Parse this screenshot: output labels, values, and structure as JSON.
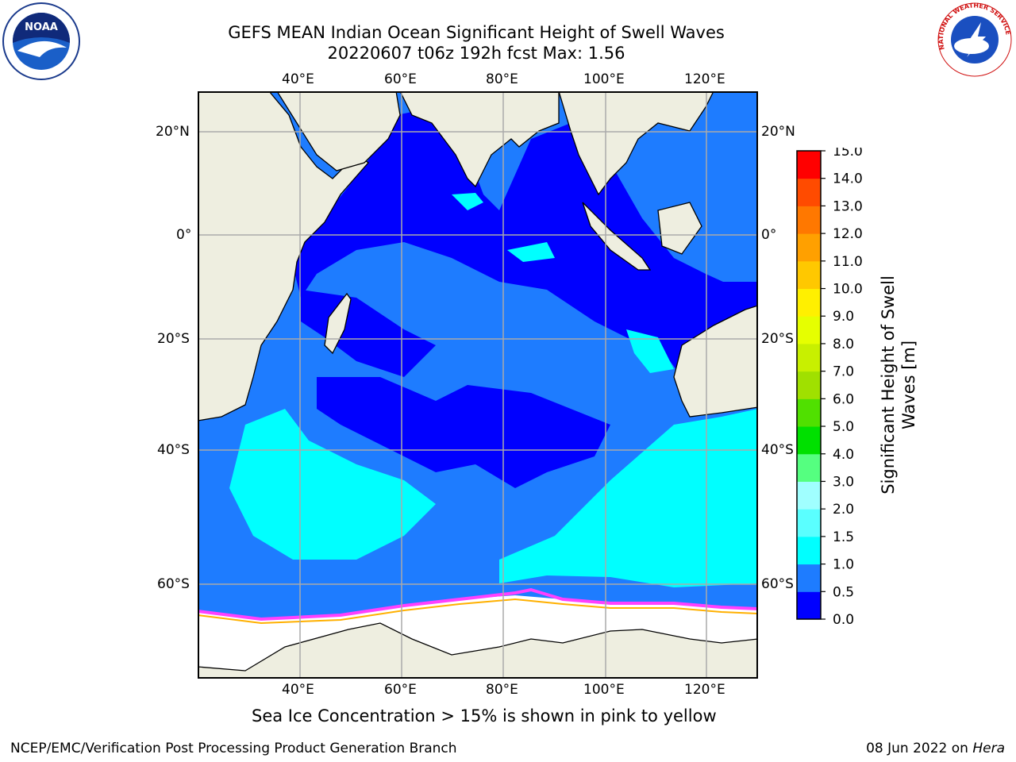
{
  "title": {
    "line1": "GEFS MEAN Indian Ocean Significant Height of Swell Waves",
    "line2": "20220607 t06z 192h fcst   Max: 1.56"
  },
  "logos": {
    "noaa_text": "NOAA",
    "nws_text": "NATIONAL WEATHER SERVICE"
  },
  "axes": {
    "lon_labels": [
      "40°E",
      "60°E",
      "80°E",
      "100°E",
      "120°E"
    ],
    "lat_labels": [
      "20°N",
      "0°",
      "20°S",
      "40°S",
      "60°S"
    ]
  },
  "colorbar": {
    "label_line1": "Significant Height of Swell",
    "label_line2": "Waves [m]",
    "ticks": [
      "0.0",
      "0.5",
      "1.0",
      "1.5",
      "2.0",
      "3.0",
      "4.0",
      "5.0",
      "6.0",
      "7.0",
      "8.0",
      "9.0",
      "10.0",
      "11.0",
      "12.0",
      "13.0",
      "14.0",
      "15.0"
    ],
    "colors": [
      "#0000ff",
      "#1e7cff",
      "#00ffff",
      "#5affff",
      "#a0ffff",
      "#55ff80",
      "#00e000",
      "#50e000",
      "#a0e000",
      "#c8f000",
      "#e6ff00",
      "#fff000",
      "#ffc800",
      "#ffa000",
      "#ff7800",
      "#ff4b00",
      "#ff0000"
    ]
  },
  "note": "Sea Ice Concentration > 15% is shown in pink to yellow",
  "footer": {
    "left": "NCEP/EMC/Verification Post Processing Product Generation Branch",
    "right_date": "08 Jun 2022 on ",
    "right_machine": "Hera"
  },
  "colors": {
    "land": "#eeeee0",
    "ocean_low": "#0000ff",
    "ocean_mid": "#1e7cff",
    "ocean_high": "#00ffff",
    "ice": "#ffffff",
    "ice_edge": "#ff40ff"
  }
}
